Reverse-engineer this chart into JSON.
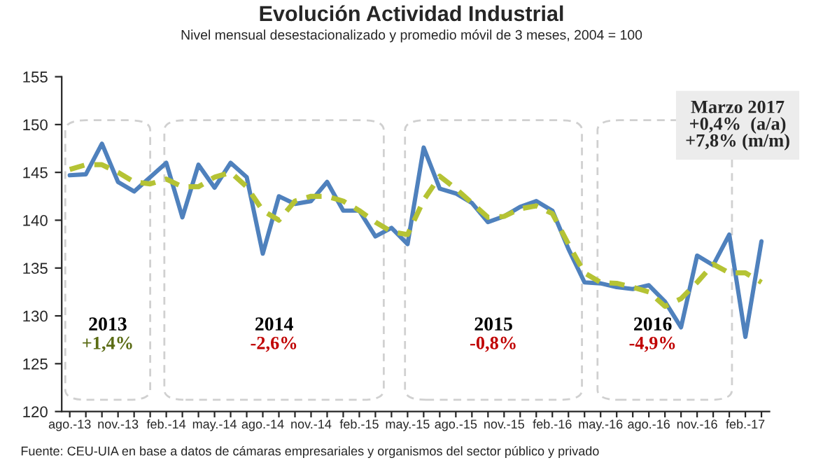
{
  "chart_data": {
    "type": "line",
    "title": "Evolución Actividad Industrial",
    "subtitle": "Nivel mensual desestacionalizado y promedio móvil de 3 meses, 2004 = 100",
    "categories": [
      "ago.-13",
      null,
      null,
      "nov.-13",
      null,
      null,
      "feb.-14",
      null,
      null,
      "may.-14",
      null,
      null,
      "ago.-14",
      null,
      null,
      "nov.-14",
      null,
      null,
      "feb.-15",
      null,
      null,
      "may.-15",
      null,
      null,
      "ago.-15",
      null,
      null,
      "nov.-15",
      null,
      null,
      "feb.-16",
      null,
      null,
      "may.-16",
      null,
      null,
      "ago.-16",
      null,
      null,
      "nov.-16",
      null,
      null,
      "feb.-17",
      null
    ],
    "series": [
      {
        "color": "#4f81bd",
        "line_style": "solid",
        "values": [
          144.7,
          144.8,
          148.0,
          144.0,
          143.0,
          144.5,
          146.0,
          140.3,
          145.8,
          143.4,
          146.0,
          144.5,
          136.5,
          142.5,
          141.7,
          142.0,
          144.0,
          141.0,
          141.0,
          138.3,
          139.2,
          137.5,
          147.6,
          143.3,
          142.8,
          141.8,
          139.8,
          140.4,
          141.4,
          142.0,
          141.0,
          137.0,
          133.5,
          133.4,
          133.0,
          132.8,
          133.2,
          131.5,
          128.8,
          136.3,
          135.3,
          138.5,
          127.8,
          137.8
        ]
      },
      {
        "color": "#b5c334",
        "line_style": "dashed",
        "values": [
          145.3,
          145.8,
          145.8,
          145.0,
          144.0,
          143.8,
          144.3,
          143.5,
          143.5,
          144.5,
          145.0,
          143.5,
          141.0,
          140.0,
          142.0,
          142.5,
          142.5,
          142.0,
          141.0,
          139.8,
          138.8,
          138.5,
          142.1,
          144.6,
          143.3,
          141.8,
          140.3,
          140.4,
          141.2,
          141.5,
          140.7,
          137.5,
          134.5,
          133.5,
          133.4,
          133.0,
          132.5,
          131.0,
          131.8,
          133.5,
          135.4,
          134.5,
          134.5,
          133.5
        ]
      }
    ],
    "ylim": [
      120,
      155
    ],
    "yticks": [
      120,
      125,
      130,
      135,
      140,
      145,
      150,
      155
    ],
    "grid": false,
    "legend": false,
    "annotations": [
      "2013",
      "+1,4%",
      "2014",
      "-2,6%",
      "2015",
      "-0,8%",
      "2016",
      "-4,9%",
      "Marzo 2017\n+0,4%  (a/a)\n+7,8% (m/m)",
      "Fuente: CEU-UIA en base a datos de cámaras empresariales y organismos del sector público y privado"
    ]
  }
}
